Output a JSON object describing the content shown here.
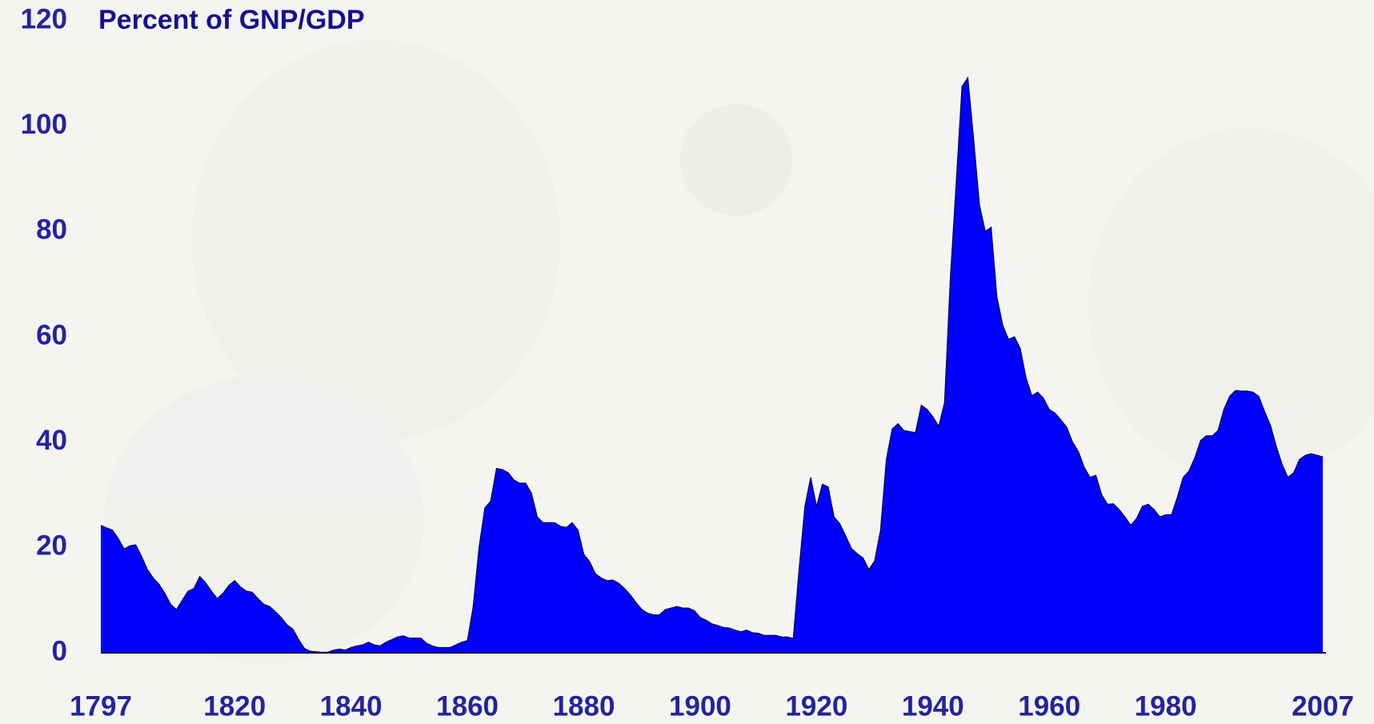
{
  "chart_data": {
    "type": "area",
    "title": "Percent of GNP/GDP",
    "color": "#0000ff",
    "x": [
      1797,
      1798,
      1799,
      1800,
      1801,
      1802,
      1803,
      1804,
      1805,
      1806,
      1807,
      1808,
      1809,
      1810,
      1811,
      1812,
      1813,
      1814,
      1815,
      1816,
      1817,
      1818,
      1819,
      1820,
      1821,
      1822,
      1823,
      1824,
      1825,
      1826,
      1827,
      1828,
      1829,
      1830,
      1831,
      1832,
      1833,
      1834,
      1835,
      1836,
      1837,
      1838,
      1839,
      1840,
      1841,
      1842,
      1843,
      1844,
      1845,
      1846,
      1847,
      1848,
      1849,
      1850,
      1851,
      1852,
      1853,
      1854,
      1855,
      1856,
      1857,
      1858,
      1859,
      1860,
      1861,
      1862,
      1863,
      1864,
      1865,
      1866,
      1867,
      1868,
      1869,
      1870,
      1871,
      1872,
      1873,
      1874,
      1875,
      1876,
      1877,
      1878,
      1879,
      1880,
      1881,
      1882,
      1883,
      1884,
      1885,
      1886,
      1887,
      1888,
      1889,
      1890,
      1891,
      1892,
      1893,
      1894,
      1895,
      1896,
      1897,
      1898,
      1899,
      1900,
      1901,
      1902,
      1903,
      1904,
      1905,
      1906,
      1907,
      1908,
      1909,
      1910,
      1911,
      1912,
      1913,
      1914,
      1915,
      1916,
      1917,
      1918,
      1919,
      1920,
      1921,
      1922,
      1923,
      1924,
      1925,
      1926,
      1927,
      1928,
      1929,
      1930,
      1931,
      1932,
      1933,
      1934,
      1935,
      1936,
      1937,
      1938,
      1939,
      1940,
      1941,
      1942,
      1943,
      1944,
      1945,
      1946,
      1947,
      1948,
      1949,
      1950,
      1951,
      1952,
      1953,
      1954,
      1955,
      1956,
      1957,
      1958,
      1959,
      1960,
      1961,
      1962,
      1963,
      1964,
      1965,
      1966,
      1967,
      1968,
      1969,
      1970,
      1971,
      1972,
      1973,
      1974,
      1975,
      1976,
      1977,
      1978,
      1979,
      1980,
      1981,
      1982,
      1983,
      1984,
      1985,
      1986,
      1987,
      1988,
      1989,
      1990,
      1991,
      1992,
      1993,
      1994,
      1995,
      1996,
      1997,
      1998,
      1999,
      2000,
      2001,
      2002,
      2003,
      2004,
      2005,
      2006,
      2007
    ],
    "values": [
      24.2,
      23.7,
      23.3,
      21.7,
      19.7,
      20.3,
      20.5,
      18.3,
      15.8,
      14.2,
      13,
      11.3,
      9.2,
      8.2,
      10,
      11.7,
      12.2,
      14.5,
      13.3,
      11.7,
      10.3,
      11.3,
      12.8,
      13.7,
      12.5,
      11.7,
      11.5,
      10.3,
      9.2,
      8.8,
      7.8,
      6.7,
      5.3,
      4.5,
      2.5,
      0.8,
      0.3,
      0.2,
      0.1,
      0.1,
      0.5,
      0.7,
      0.5,
      1,
      1.3,
      1.5,
      2,
      1.5,
      1.3,
      2,
      2.5,
      3,
      3.2,
      2.8,
      2.8,
      2.8,
      1.8,
      1.3,
      1,
      1,
      1,
      1.5,
      2,
      2.3,
      8.8,
      20,
      27.5,
      28.8,
      35,
      34.8,
      34.2,
      32.8,
      32.2,
      32.2,
      30.3,
      25.8,
      24.7,
      24.7,
      24.7,
      24,
      23.8,
      24.7,
      23.3,
      18.7,
      17.3,
      15,
      14.2,
      13.7,
      13.8,
      13.2,
      12.2,
      11,
      9.5,
      8.2,
      7.5,
      7.2,
      7.2,
      8.2,
      8.5,
      8.8,
      8.5,
      8.5,
      8,
      6.7,
      6.2,
      5.5,
      5.2,
      4.8,
      4.7,
      4.3,
      4,
      4.3,
      3.8,
      3.7,
      3.3,
      3.3,
      3.3,
      3,
      3,
      2.7,
      15.8,
      27.8,
      33.3,
      27.8,
      32,
      31.5,
      25.8,
      24.5,
      22.2,
      19.8,
      18.8,
      18,
      15.8,
      17.5,
      23.3,
      36.7,
      42.5,
      43.5,
      42.2,
      42,
      41.8,
      47,
      46.2,
      44.8,
      43,
      47.5,
      71.2,
      89.2,
      107.5,
      109.2,
      97.5,
      85,
      80,
      80.8,
      67.5,
      62.2,
      59.5,
      60,
      57.8,
      52.2,
      48.8,
      49.5,
      48.3,
      46.2,
      45.5,
      44.2,
      42.8,
      40,
      38.2,
      35.2,
      33.3,
      33.7,
      30,
      28.2,
      28.3,
      27.2,
      25.8,
      24.2,
      25.5,
      27.8,
      28.2,
      27.2,
      25.8,
      26.2,
      26.2,
      29.5,
      33.3,
      34.5,
      37,
      40.3,
      41.2,
      41.2,
      42.2,
      46.2,
      48.7,
      49.8,
      49.7,
      49.7,
      49.5,
      48.7,
      45.8,
      43.2,
      39.2,
      35.8,
      33.3,
      34.2,
      36.7,
      37.5,
      37.8,
      37.5,
      37.2
    ],
    "xlim": [
      1797,
      2007
    ],
    "xticks": [
      1797,
      1820,
      1840,
      1860,
      1880,
      1900,
      1920,
      1940,
      1960,
      1980,
      2007
    ],
    "ylim": [
      0,
      120
    ],
    "yticks": [
      0,
      20,
      40,
      60,
      80,
      100,
      120
    ],
    "grid": false
  }
}
